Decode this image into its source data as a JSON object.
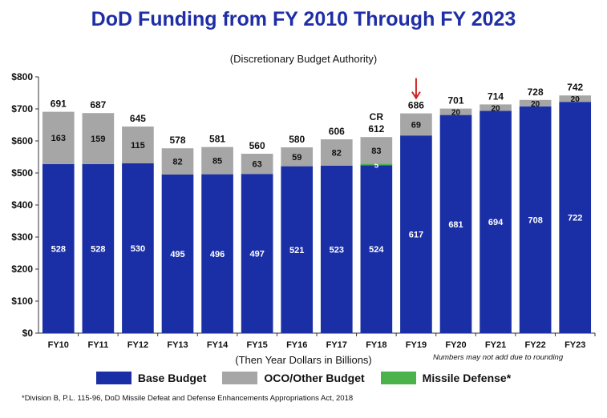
{
  "chart_data": {
    "type": "bar",
    "stacked": true,
    "title": "DoD Funding from FY 2010 Through FY 2023",
    "subtitle": "(Discretionary Budget Authority)",
    "xlabel": "(Then Year Dollars in Billions)",
    "ylabel": "",
    "ylim": [
      0,
      800
    ],
    "yticks": [
      "$0",
      "$100",
      "$200",
      "$300",
      "$400",
      "$500",
      "$600",
      "$700",
      "$800"
    ],
    "categories": [
      "FY10",
      "FY11",
      "FY12",
      "FY13",
      "FY14",
      "FY15",
      "FY16",
      "FY17",
      "FY18",
      "FY19",
      "FY20",
      "FY21",
      "FY22",
      "FY23"
    ],
    "series": [
      {
        "name": "Base Budget",
        "color": "#1a2fa6",
        "values": [
          528,
          528,
          530,
          495,
          496,
          497,
          521,
          523,
          524,
          617,
          681,
          694,
          708,
          722
        ]
      },
      {
        "name": "Missile Defense*",
        "color": "#4cb34c",
        "values": [
          0,
          0,
          0,
          0,
          0,
          0,
          0,
          0,
          5,
          0,
          0,
          0,
          0,
          0
        ]
      },
      {
        "name": "OCO/Other  Budget",
        "color": "#a6a6a6",
        "values": [
          163,
          159,
          115,
          82,
          85,
          63,
          59,
          82,
          83,
          69,
          20,
          20,
          20,
          20
        ]
      }
    ],
    "totals": [
      "691",
      "687",
      "645",
      "578",
      "581",
      "560",
      "580",
      "606",
      "612",
      "686",
      "701",
      "714",
      "728",
      "742"
    ],
    "annotations": [
      {
        "category": "FY18",
        "text": "CR"
      },
      {
        "category": "FY19",
        "text": "arrow",
        "color": "#cc2222"
      }
    ],
    "notes": {
      "rounding": "Numbers may not add due to rounding",
      "footnote": "*Division B, P.L. 115-96, DoD Missile Defeat and Defense Enhancements Appropriations Act, 2018"
    },
    "legend_placement": "bottom",
    "grid": false
  }
}
